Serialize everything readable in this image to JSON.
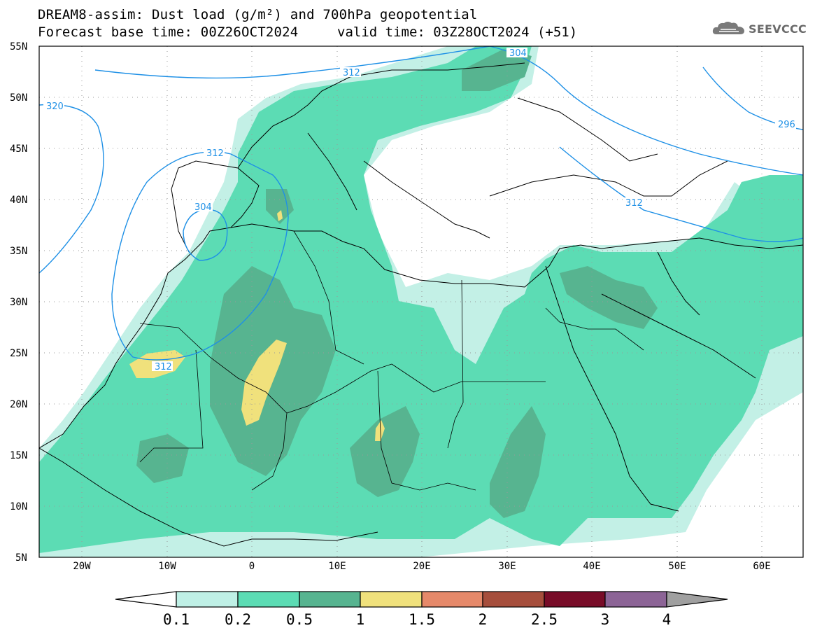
{
  "title": {
    "line1": "DREAM8-assim: Dust load (g/m²) and 700hPa geopotential",
    "line2": "Forecast base time: 00Z26OCT2024",
    "valid": "valid time: 03Z28OCT2024 (+51)"
  },
  "logo": {
    "text": "SEEVCCC",
    "icon": "cloud-icon"
  },
  "axes": {
    "lat_labels": [
      "55N",
      "50N",
      "45N",
      "40N",
      "35N",
      "30N",
      "25N",
      "20N",
      "15N",
      "10N",
      "5N"
    ],
    "lon_labels": [
      "20W",
      "10W",
      "0",
      "10E",
      "20E",
      "30E",
      "40E",
      "50E",
      "60E"
    ]
  },
  "contours": [
    {
      "label": "320"
    },
    {
      "label": "312"
    },
    {
      "label": "312"
    },
    {
      "label": "304"
    },
    {
      "label": "312"
    },
    {
      "label": "304"
    },
    {
      "label": "296"
    },
    {
      "label": "312"
    }
  ],
  "colorbar": {
    "levels": [
      "0.1",
      "0.2",
      "0.5",
      "1",
      "1.5",
      "2",
      "2.5",
      "3",
      "4"
    ],
    "colors": [
      "#bff0e6",
      "#5cdcb4",
      "#57b490",
      "#f0e17c",
      "#e6896a",
      "#a64e3c",
      "#780c28",
      "#8c6496"
    ],
    "under_color": "#ffffff",
    "over_color": "#a0a0a0"
  },
  "colors": {
    "contour": "#1e90e6",
    "dust_light": "#c3f0e6",
    "dust_mid": "#5cdcb4",
    "dust_dark": "#57b490",
    "dust_yellow": "#f0e17c"
  }
}
